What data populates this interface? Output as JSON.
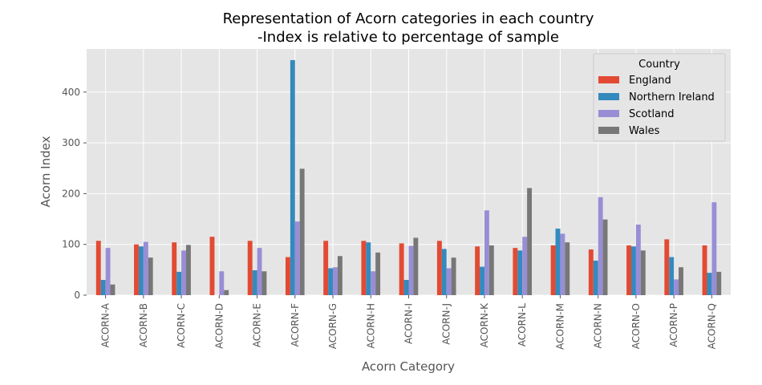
{
  "chart_data": {
    "type": "bar",
    "title_line1": "Representation of Acorn categories in each country",
    "title_line2": "-Index is relative to percentage of sample",
    "xlabel": "Acorn Category",
    "ylabel": "Acorn Index",
    "ylim": [
      0,
      485
    ],
    "yticks": [
      0,
      100,
      200,
      300,
      400
    ],
    "grid": true,
    "legend_position": "top-right",
    "legend_title": "Country",
    "categories": [
      "ACORN-A",
      "ACORN-B",
      "ACORN-C",
      "ACORN-D",
      "ACORN-E",
      "ACORN-F",
      "ACORN-G",
      "ACORN-H",
      "ACORN-I",
      "ACORN-J",
      "ACORN-K",
      "ACORN-L",
      "ACORN-M",
      "ACORN-N",
      "ACORN-O",
      "ACORN-P",
      "ACORN-Q"
    ],
    "series": [
      {
        "name": "England",
        "color": "#E24A33",
        "values": [
          107,
          100,
          104,
          115,
          107,
          75,
          107,
          107,
          102,
          107,
          96,
          93,
          98,
          90,
          98,
          110,
          98
        ]
      },
      {
        "name": "Northern Ireland",
        "color": "#348ABD",
        "values": [
          30,
          96,
          46,
          0,
          49,
          463,
          53,
          104,
          30,
          91,
          56,
          88,
          131,
          68,
          96,
          75,
          44
        ]
      },
      {
        "name": "Scotland",
        "color": "#988ED5",
        "values": [
          93,
          105,
          88,
          47,
          93,
          145,
          55,
          47,
          97,
          53,
          167,
          115,
          121,
          193,
          139,
          31,
          183
        ]
      },
      {
        "name": "Wales",
        "color": "#777777",
        "values": [
          21,
          74,
          99,
          10,
          47,
          249,
          77,
          84,
          113,
          74,
          98,
          211,
          104,
          149,
          88,
          55,
          46
        ]
      }
    ]
  }
}
